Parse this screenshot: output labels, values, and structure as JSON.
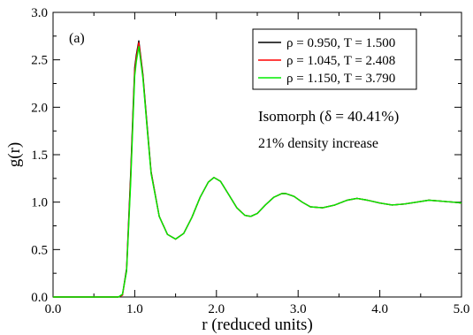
{
  "chart_data": {
    "type": "line",
    "panel_label": "(a)",
    "xlabel": "r (reduced units)",
    "ylabel": "g(r)",
    "xlim": [
      0,
      5
    ],
    "ylim": [
      0,
      3
    ],
    "x_ticks": [
      0,
      1,
      2,
      3,
      4,
      5
    ],
    "x_tick_labels": [
      "0.0",
      "1.0",
      "2.0",
      "3.0",
      "4.0",
      "5.0"
    ],
    "y_ticks": [
      0,
      0.5,
      1,
      1.5,
      2,
      2.5,
      3
    ],
    "y_tick_labels": [
      "0.0",
      "0.5",
      "1.0",
      "1.5",
      "2.0",
      "2.5",
      "3.0"
    ],
    "grid": false,
    "legend_position": "top-right",
    "annotations": [
      "Isomorph (δ = 40.41%)",
      "21% density increase"
    ],
    "series": [
      {
        "name": "ρ = 0.950, T = 1.500",
        "color": "#000000",
        "points": [
          [
            0,
            0
          ],
          [
            0.5,
            0
          ],
          [
            0.8,
            0
          ],
          [
            0.85,
            0.02
          ],
          [
            0.9,
            0.3
          ],
          [
            0.95,
            1.3
          ],
          [
            0.98,
            2.0
          ],
          [
            1.0,
            2.42
          ],
          [
            1.02,
            2.55
          ],
          [
            1.05,
            2.7
          ],
          [
            1.1,
            2.35
          ],
          [
            1.15,
            1.82
          ],
          [
            1.2,
            1.32
          ],
          [
            1.3,
            0.85
          ],
          [
            1.4,
            0.66
          ],
          [
            1.5,
            0.61
          ],
          [
            1.6,
            0.67
          ],
          [
            1.7,
            0.84
          ],
          [
            1.8,
            1.05
          ],
          [
            1.9,
            1.21
          ],
          [
            1.97,
            1.26
          ],
          [
            2.05,
            1.22
          ],
          [
            2.15,
            1.08
          ],
          [
            2.25,
            0.94
          ],
          [
            2.35,
            0.86
          ],
          [
            2.42,
            0.85
          ],
          [
            2.5,
            0.88
          ],
          [
            2.6,
            0.97
          ],
          [
            2.7,
            1.05
          ],
          [
            2.8,
            1.09
          ],
          [
            2.85,
            1.09
          ],
          [
            2.95,
            1.06
          ],
          [
            3.05,
            1.0
          ],
          [
            3.15,
            0.95
          ],
          [
            3.3,
            0.94
          ],
          [
            3.45,
            0.97
          ],
          [
            3.6,
            1.02
          ],
          [
            3.72,
            1.04
          ],
          [
            3.85,
            1.02
          ],
          [
            4.0,
            0.99
          ],
          [
            4.15,
            0.97
          ],
          [
            4.3,
            0.98
          ],
          [
            4.45,
            1.0
          ],
          [
            4.6,
            1.02
          ],
          [
            4.75,
            1.01
          ],
          [
            4.9,
            1.0
          ],
          [
            5.0,
            0.99
          ]
        ]
      },
      {
        "name": "ρ = 1.045, T = 2.408",
        "color": "#ff0000",
        "points": [
          [
            0,
            0
          ],
          [
            0.5,
            0
          ],
          [
            0.8,
            0
          ],
          [
            0.85,
            0.02
          ],
          [
            0.9,
            0.28
          ],
          [
            0.95,
            1.25
          ],
          [
            0.98,
            1.95
          ],
          [
            1.0,
            2.38
          ],
          [
            1.02,
            2.52
          ],
          [
            1.05,
            2.68
          ],
          [
            1.1,
            2.33
          ],
          [
            1.15,
            1.8
          ],
          [
            1.2,
            1.31
          ],
          [
            1.3,
            0.85
          ],
          [
            1.4,
            0.66
          ],
          [
            1.5,
            0.61
          ],
          [
            1.6,
            0.67
          ],
          [
            1.7,
            0.84
          ],
          [
            1.8,
            1.05
          ],
          [
            1.9,
            1.21
          ],
          [
            1.97,
            1.26
          ],
          [
            2.05,
            1.22
          ],
          [
            2.15,
            1.08
          ],
          [
            2.25,
            0.94
          ],
          [
            2.35,
            0.86
          ],
          [
            2.42,
            0.85
          ],
          [
            2.5,
            0.88
          ],
          [
            2.6,
            0.97
          ],
          [
            2.7,
            1.05
          ],
          [
            2.8,
            1.09
          ],
          [
            2.85,
            1.09
          ],
          [
            2.95,
            1.06
          ],
          [
            3.05,
            1.0
          ],
          [
            3.15,
            0.95
          ],
          [
            3.3,
            0.94
          ],
          [
            3.45,
            0.97
          ],
          [
            3.6,
            1.02
          ],
          [
            3.72,
            1.04
          ],
          [
            3.85,
            1.02
          ],
          [
            4.0,
            0.99
          ],
          [
            4.15,
            0.97
          ],
          [
            4.3,
            0.98
          ],
          [
            4.45,
            1.0
          ],
          [
            4.6,
            1.02
          ],
          [
            4.75,
            1.01
          ],
          [
            4.9,
            1.0
          ],
          [
            5.0,
            0.99
          ]
        ]
      },
      {
        "name": "ρ = 1.150, T = 3.790",
        "color": "#00ee00",
        "points": [
          [
            0,
            0
          ],
          [
            0.5,
            0
          ],
          [
            0.8,
            0
          ],
          [
            0.85,
            0.03
          ],
          [
            0.9,
            0.27
          ],
          [
            0.95,
            1.2
          ],
          [
            0.98,
            1.9
          ],
          [
            1.0,
            2.33
          ],
          [
            1.02,
            2.48
          ],
          [
            1.05,
            2.64
          ],
          [
            1.1,
            2.31
          ],
          [
            1.15,
            1.79
          ],
          [
            1.2,
            1.3
          ],
          [
            1.3,
            0.85
          ],
          [
            1.4,
            0.66
          ],
          [
            1.5,
            0.61
          ],
          [
            1.6,
            0.67
          ],
          [
            1.7,
            0.84
          ],
          [
            1.8,
            1.05
          ],
          [
            1.9,
            1.21
          ],
          [
            1.97,
            1.26
          ],
          [
            2.05,
            1.22
          ],
          [
            2.15,
            1.08
          ],
          [
            2.25,
            0.94
          ],
          [
            2.35,
            0.86
          ],
          [
            2.42,
            0.85
          ],
          [
            2.5,
            0.88
          ],
          [
            2.6,
            0.97
          ],
          [
            2.7,
            1.05
          ],
          [
            2.8,
            1.09
          ],
          [
            2.85,
            1.09
          ],
          [
            2.95,
            1.06
          ],
          [
            3.05,
            1.0
          ],
          [
            3.15,
            0.95
          ],
          [
            3.3,
            0.94
          ],
          [
            3.45,
            0.97
          ],
          [
            3.6,
            1.02
          ],
          [
            3.72,
            1.04
          ],
          [
            3.85,
            1.02
          ],
          [
            4.0,
            0.99
          ],
          [
            4.15,
            0.97
          ],
          [
            4.3,
            0.98
          ],
          [
            4.45,
            1.0
          ],
          [
            4.6,
            1.02
          ],
          [
            4.75,
            1.01
          ],
          [
            4.9,
            1.0
          ],
          [
            5.0,
            0.99
          ]
        ]
      }
    ]
  }
}
